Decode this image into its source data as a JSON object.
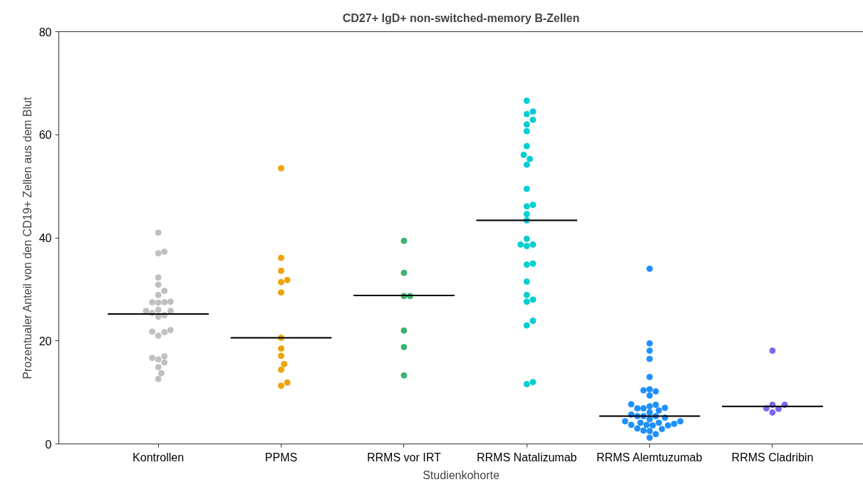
{
  "chart_data": {
    "type": "scatter",
    "title": "CD27+ IgD+ non-switched-memory B-Zellen",
    "xlabel": "Studienkohorte",
    "ylabel": "Prozentualer Anteil von den CD19+ Zellen aus dem Blut",
    "categories": [
      "Kontrollen",
      "PPMS",
      "RRMS vor IRT",
      "RRMS Natalizumab",
      "RRMS Alemtuzumab",
      "RRMS Cladribin"
    ],
    "ylim": [
      0,
      80
    ],
    "yticks": [
      0,
      20,
      40,
      60,
      80
    ],
    "grid": false,
    "marker": "circle",
    "series": [
      {
        "color": "#c0c0c0",
        "x": [
          "Kontrollen",
          "Kontrollen",
          "Kontrollen",
          "Kontrollen",
          "Kontrollen",
          "Kontrollen",
          "Kontrollen",
          "Kontrollen",
          "Kontrollen",
          "Kontrollen",
          "Kontrollen",
          "Kontrollen",
          "Kontrollen",
          "Kontrollen",
          "Kontrollen",
          "Kontrollen",
          "Kontrollen",
          "Kontrollen",
          "Kontrollen",
          "Kontrollen",
          "Kontrollen",
          "Kontrollen",
          "Kontrollen",
          "Kontrollen",
          "Kontrollen",
          "Kontrollen",
          "Kontrollen",
          "Kontrollen"
        ],
        "values": [
          41.0,
          37.0,
          37.3,
          32.3,
          30.9,
          29.7,
          28.9,
          27.5,
          27.4,
          27.5,
          27.6,
          26.0,
          25.8,
          25.8,
          25.4,
          24.7,
          25.0,
          22.1,
          21.8,
          21.0,
          21.7,
          16.7,
          16.4,
          17.0,
          15.8,
          14.9,
          13.7,
          12.6
        ]
      },
      {
        "color": "#f0a30a",
        "x": [
          "PPMS",
          "PPMS",
          "PPMS",
          "PPMS",
          "PPMS",
          "PPMS",
          "PPMS",
          "PPMS",
          "PPMS",
          "PPMS",
          "PPMS",
          "PPMS",
          "PPMS"
        ],
        "values": [
          53.5,
          36.1,
          33.6,
          31.4,
          31.8,
          29.4,
          20.6,
          18.5,
          17.1,
          15.5,
          14.4,
          11.3,
          11.9
        ]
      },
      {
        "color": "#3cb371",
        "x": [
          "RRMS vor IRT",
          "RRMS vor IRT",
          "RRMS vor IRT",
          "RRMS vor IRT",
          "RRMS vor IRT",
          "RRMS vor IRT",
          "RRMS vor IRT"
        ],
        "values": [
          39.4,
          33.2,
          28.7,
          28.7,
          22.0,
          18.8,
          13.3
        ]
      },
      {
        "color": "#00ced1",
        "x": [
          "RRMS Natalizumab",
          "RRMS Natalizumab",
          "RRMS Natalizumab",
          "RRMS Natalizumab",
          "RRMS Natalizumab",
          "RRMS Natalizumab",
          "RRMS Natalizumab",
          "RRMS Natalizumab",
          "RRMS Natalizumab",
          "RRMS Natalizumab",
          "RRMS Natalizumab",
          "RRMS Natalizumab",
          "RRMS Natalizumab",
          "RRMS Natalizumab",
          "RRMS Natalizumab",
          "RRMS Natalizumab",
          "RRMS Natalizumab",
          "RRMS Natalizumab",
          "RRMS Natalizumab",
          "RRMS Natalizumab",
          "RRMS Natalizumab",
          "RRMS Natalizumab",
          "RRMS Natalizumab",
          "RRMS Natalizumab",
          "RRMS Natalizumab",
          "RRMS Natalizumab",
          "RRMS Natalizumab",
          "RRMS Natalizumab",
          "RRMS Natalizumab"
        ],
        "values": [
          66.6,
          64.0,
          64.5,
          62.9,
          62.0,
          60.7,
          57.8,
          56.1,
          55.3,
          54.2,
          49.5,
          46.1,
          46.4,
          44.6,
          43.4,
          39.8,
          38.7,
          38.4,
          38.7,
          34.8,
          35.0,
          31.5,
          28.9,
          27.6,
          28.0,
          23.9,
          23.0,
          11.6,
          12.0
        ]
      },
      {
        "color": "#1e90ff",
        "x": [
          "RRMS Alemtuzumab",
          "RRMS Alemtuzumab",
          "RRMS Alemtuzumab",
          "RRMS Alemtuzumab",
          "RRMS Alemtuzumab",
          "RRMS Alemtuzumab",
          "RRMS Alemtuzumab",
          "RRMS Alemtuzumab",
          "RRMS Alemtuzumab",
          "RRMS Alemtuzumab",
          "RRMS Alemtuzumab",
          "RRMS Alemtuzumab",
          "RRMS Alemtuzumab",
          "RRMS Alemtuzumab",
          "RRMS Alemtuzumab",
          "RRMS Alemtuzumab",
          "RRMS Alemtuzumab",
          "RRMS Alemtuzumab",
          "RRMS Alemtuzumab",
          "RRMS Alemtuzumab",
          "RRMS Alemtuzumab",
          "RRMS Alemtuzumab",
          "RRMS Alemtuzumab",
          "RRMS Alemtuzumab",
          "RRMS Alemtuzumab",
          "RRMS Alemtuzumab",
          "RRMS Alemtuzumab",
          "RRMS Alemtuzumab",
          "RRMS Alemtuzumab",
          "RRMS Alemtuzumab",
          "RRMS Alemtuzumab",
          "RRMS Alemtuzumab",
          "RRMS Alemtuzumab",
          "RRMS Alemtuzumab",
          "RRMS Alemtuzumab",
          "RRMS Alemtuzumab",
          "RRMS Alemtuzumab",
          "RRMS Alemtuzumab"
        ],
        "values": [
          34.0,
          19.5,
          18.1,
          16.5,
          13.0,
          10.6,
          10.4,
          9.4,
          10.2,
          7.7,
          7.0,
          6.9,
          6.5,
          7.6,
          6.9,
          7.3,
          6.1,
          5.4,
          5.4,
          5.7,
          4.8,
          5.1,
          5.4,
          4.4,
          3.6,
          4.1,
          3.9,
          3.6,
          4.1,
          3.0,
          2.6,
          2.5,
          2.9,
          3.7,
          3.7,
          4.4,
          1.9,
          1.2
        ]
      },
      {
        "color": "#7b68ee",
        "x": [
          "RRMS Cladribin",
          "RRMS Cladribin",
          "RRMS Cladribin",
          "RRMS Cladribin",
          "RRMS Cladribin",
          "RRMS Cladribin"
        ],
        "values": [
          18.1,
          7.6,
          7.6,
          6.9,
          6.8,
          6.1
        ]
      },
      {
        "color": "#000000",
        "type": "box",
        "boxes": [
          {
            "low": 25.2,
            "q1": 25.2,
            "median": 25.2,
            "q3": 25.2,
            "high": 25.2
          },
          {
            "low": 20.6,
            "q1": 20.6,
            "median": 20.6,
            "q3": 20.6,
            "high": 20.6
          },
          {
            "low": 28.8,
            "q1": 28.8,
            "median": 28.8,
            "q3": 28.8,
            "high": 28.8
          },
          {
            "low": 43.4,
            "q1": 43.4,
            "median": 43.4,
            "q3": 43.4,
            "high": 43.4
          },
          {
            "low": 5.4,
            "q1": 5.4,
            "median": 5.4,
            "q3": 5.4,
            "high": 5.4
          },
          {
            "low": 7.3,
            "q1": 7.3,
            "median": 7.3,
            "q3": 7.3,
            "high": 7.3
          }
        ]
      }
    ]
  }
}
